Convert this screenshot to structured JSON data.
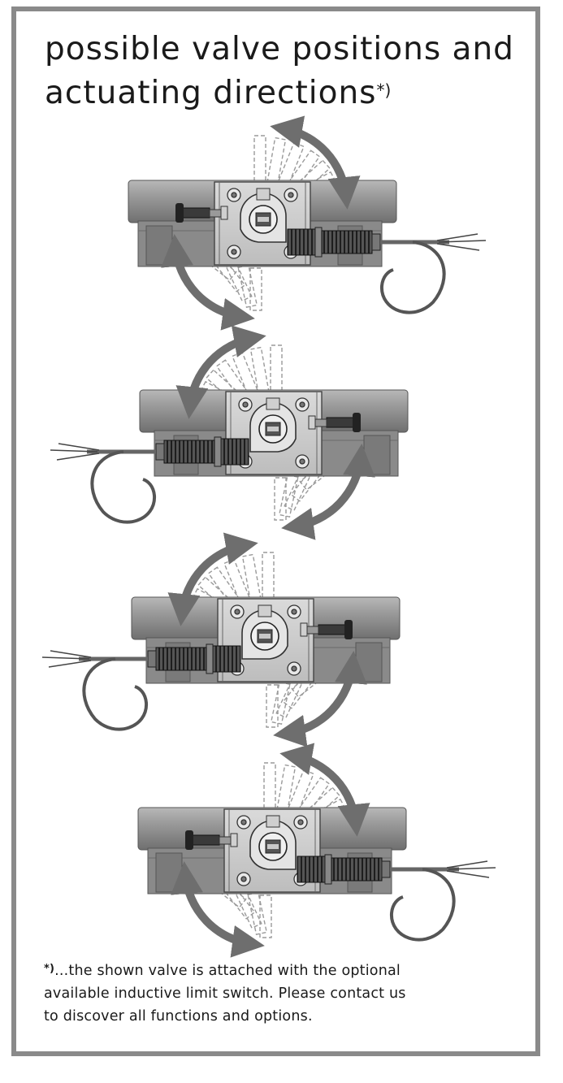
{
  "title": {
    "line1": "possible valve positions and",
    "line2": "actuating directions",
    "mark": "*)"
  },
  "footnote": {
    "mark": "*)",
    "line1": "...the shown valve is attached with the optional",
    "line2": "available inductive limit switch. Please contact us",
    "line3": "to discover all functions and options."
  },
  "colors": {
    "frame": "#8a8a8a",
    "arrow": "#6e6e6e",
    "housing": "#9a9a9a",
    "plate": "#cfcfcf",
    "spring": "#3a3a3a"
  }
}
